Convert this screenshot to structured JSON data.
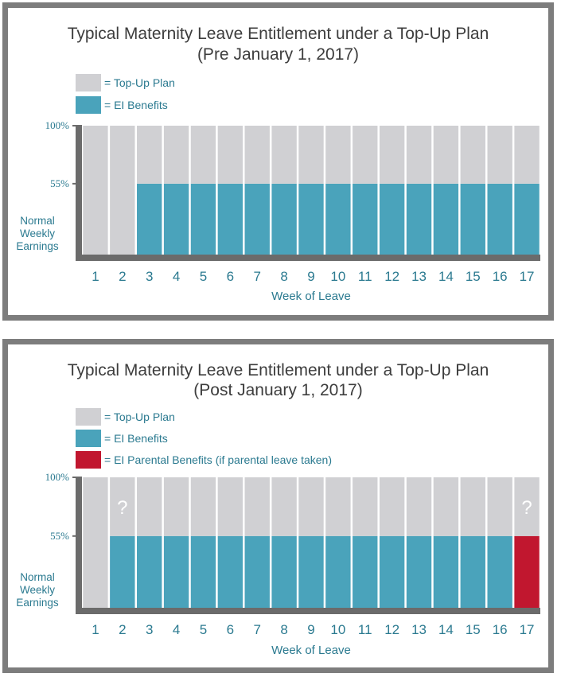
{
  "colors": {
    "top_up": "#d0d0d3",
    "ei": "#4aa3bb",
    "parental": "#c1172f",
    "axis": "#6b6b6b",
    "label": "#2b7a90"
  },
  "chart_data": [
    {
      "type": "bar",
      "title": "Typical Maternity Leave Entitlement under a Top-Up Plan",
      "subtitle": "(Pre January 1, 2017)",
      "legend": [
        {
          "key": "top_up",
          "label": "= Top-Up Plan",
          "color": "#d0d0d3"
        },
        {
          "key": "ei",
          "label": "= EI Benefits",
          "color": "#4aa3bb"
        }
      ],
      "ytick_labels": [
        "100%",
        "55%"
      ],
      "ytick_values": [
        100,
        55
      ],
      "ylabel_lines": [
        "Normal",
        "Weekly",
        "Earnings"
      ],
      "xlabel": "Week of Leave",
      "ylim": [
        0,
        100
      ],
      "categories": [
        "1",
        "2",
        "3",
        "4",
        "5",
        "6",
        "7",
        "8",
        "9",
        "10",
        "11",
        "12",
        "13",
        "14",
        "15",
        "16",
        "17"
      ],
      "series": [
        {
          "name": "= EI Benefits",
          "key": "ei",
          "values": [
            0,
            0,
            55,
            55,
            55,
            55,
            55,
            55,
            55,
            55,
            55,
            55,
            55,
            55,
            55,
            55,
            55
          ]
        },
        {
          "name": "= Top-Up Plan",
          "key": "top_up",
          "values": [
            100,
            100,
            45,
            45,
            45,
            45,
            45,
            45,
            45,
            45,
            45,
            45,
            45,
            45,
            45,
            45,
            45
          ]
        }
      ],
      "annotations": []
    },
    {
      "type": "bar",
      "title": "Typical Maternity Leave Entitlement under a Top-Up Plan",
      "subtitle": "(Post January 1, 2017)",
      "legend": [
        {
          "key": "top_up",
          "label": "= Top-Up Plan",
          "color": "#d0d0d3"
        },
        {
          "key": "ei",
          "label": "= EI Benefits",
          "color": "#4aa3bb"
        },
        {
          "key": "parental",
          "label": "= EI Parental Benefits (if parental leave taken)",
          "color": "#c1172f"
        }
      ],
      "ytick_labels": [
        "100%",
        "55%"
      ],
      "ytick_values": [
        100,
        55
      ],
      "ylabel_lines": [
        "Normal",
        "Weekly",
        "Earnings"
      ],
      "xlabel": "Week of Leave",
      "ylim": [
        0,
        100
      ],
      "categories": [
        "1",
        "2",
        "3",
        "4",
        "5",
        "6",
        "7",
        "8",
        "9",
        "10",
        "11",
        "12",
        "13",
        "14",
        "15",
        "16",
        "17"
      ],
      "series": [
        {
          "name": "= EI Benefits",
          "key": "ei",
          "values": [
            0,
            55,
            55,
            55,
            55,
            55,
            55,
            55,
            55,
            55,
            55,
            55,
            55,
            55,
            55,
            55,
            0
          ]
        },
        {
          "name": "= EI Parental Benefits (if parental leave taken)",
          "key": "parental",
          "values": [
            0,
            0,
            0,
            0,
            0,
            0,
            0,
            0,
            0,
            0,
            0,
            0,
            0,
            0,
            0,
            0,
            55
          ]
        },
        {
          "name": "= Top-Up Plan",
          "key": "top_up",
          "values": [
            100,
            45,
            45,
            45,
            45,
            45,
            45,
            45,
            45,
            45,
            45,
            45,
            45,
            45,
            45,
            45,
            45
          ]
        }
      ],
      "annotations": [
        {
          "text": "?",
          "category": "2",
          "level": 77.5
        },
        {
          "text": "?",
          "category": "17",
          "level": 77.5
        }
      ]
    }
  ]
}
